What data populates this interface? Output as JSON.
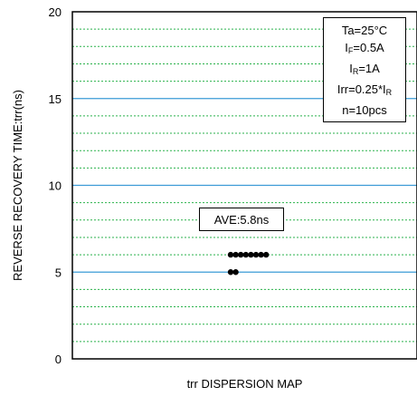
{
  "chart_data": {
    "type": "scatter",
    "title": "",
    "xlabel": "trr DISPERSION MAP",
    "ylabel": "REVERSE RECOVERY TIME:trr(ns)",
    "ylim": [
      0,
      20
    ],
    "yticks": [
      0,
      5,
      10,
      15,
      20
    ],
    "major_grid": [
      5,
      10,
      15
    ],
    "minor_grid_step": 1,
    "grid": true,
    "colors": {
      "major_grid": "#3c9bd6",
      "minor_grid": "#2bb24c",
      "points": "#000000"
    },
    "points": [
      {
        "y": 6
      },
      {
        "y": 6
      },
      {
        "y": 6
      },
      {
        "y": 6
      },
      {
        "y": 6
      },
      {
        "y": 6
      },
      {
        "y": 6
      },
      {
        "y": 6
      },
      {
        "y": 5
      },
      {
        "y": 5
      }
    ],
    "annotations": {
      "average": "AVE:5.8ns",
      "conditions": {
        "ta": "Ta=25°C",
        "if_main": "I",
        "if_sub": "F",
        "if_val": "=0.5A",
        "ir_main": "I",
        "ir_sub": "R",
        "ir_val": "=1A",
        "irr_main": "Irr=0.25*I",
        "irr_sub": "R",
        "n": "n=10pcs"
      }
    }
  }
}
